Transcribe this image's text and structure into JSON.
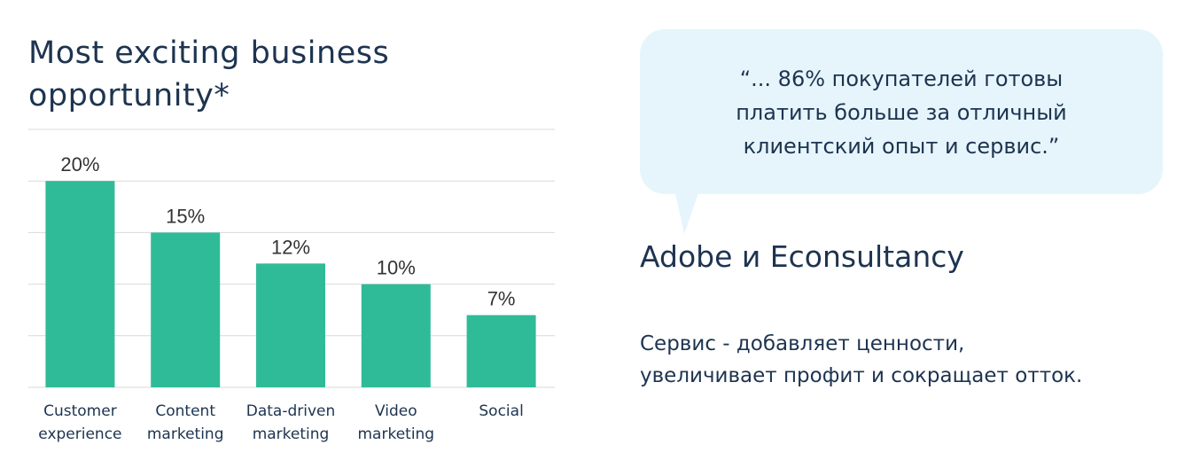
{
  "chart_data": {
    "type": "bar",
    "title": "Most exciting business opportunity*",
    "categories": [
      [
        "Customer",
        "experience"
      ],
      [
        "Content",
        "marketing"
      ],
      [
        "Data-driven",
        "marketing"
      ],
      [
        "Video",
        "marketing"
      ],
      [
        "Social"
      ]
    ],
    "values": [
      20,
      15,
      12,
      10,
      7
    ],
    "value_labels": [
      "20%",
      "15%",
      "12%",
      "10%",
      "7%"
    ],
    "ylim": [
      0,
      25
    ],
    "grid": true,
    "bar_color": "#2fbb98"
  },
  "callout": {
    "quote_lines": [
      "“... 86% покупателей готовы",
      "платить больше за отличный",
      "клиентский опыт и сервис.”"
    ],
    "source": "Adobe и Econsultancy",
    "summary_lines": [
      "Сервис - добавляет ценности,",
      "увеличивает профит и сокращает отток."
    ],
    "background_color": "#e6f5fc",
    "text_color": "#1d3450"
  }
}
